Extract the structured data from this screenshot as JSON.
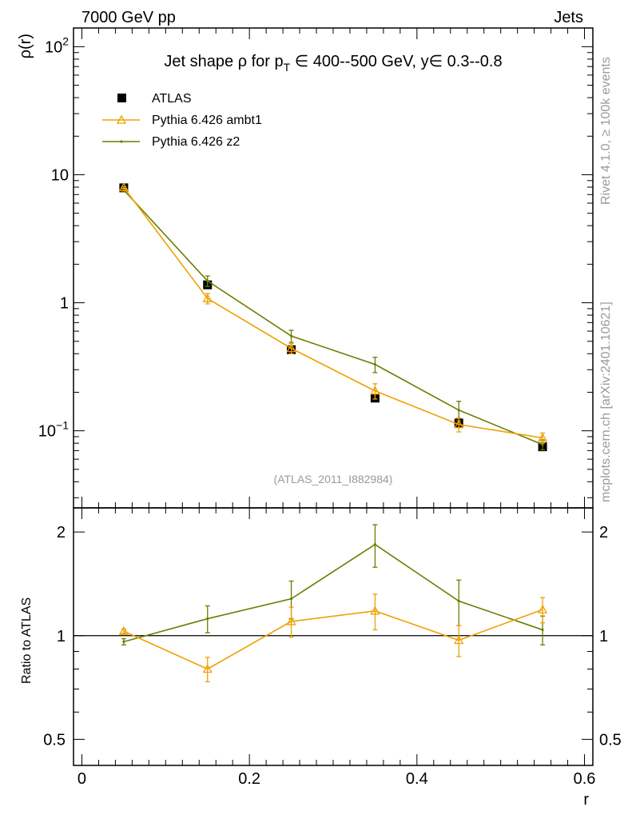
{
  "header": {
    "left": "7000 GeV pp",
    "right": "Jets"
  },
  "side_labels": {
    "rivet": "Rivet 4.1.0, ≥ 100k events",
    "mcplots": "mcplots.cern.ch [arXiv:2401.10621]"
  },
  "colors": {
    "atlas": "#000000",
    "ambt1": "#f0a000",
    "z2": "#6e7d00"
  },
  "chart_data": [
    {
      "type": "line",
      "title": "Jet shape ρ for p_T ∈ 400--500 GeV, y∈ 0.3--0.8",
      "title_parts": {
        "prefix": "Jet shape ρ for p",
        "sub": "T",
        "suffix": " ∈ 400--500 GeV, y∈ 0.3--0.8"
      },
      "ylabel": "ρ(r)",
      "yscale": "log",
      "ylim": [
        0.025,
        140
      ],
      "xlim": [
        -0.01,
        0.61
      ],
      "yticks": [
        {
          "value": 0.1,
          "base": "10",
          "exp": "−1"
        },
        {
          "value": 1,
          "label": "1"
        },
        {
          "value": 10,
          "label": "10"
        },
        {
          "value": 100,
          "base": "10",
          "exp": "2"
        }
      ],
      "annotation": "(ATLAS_2011_I882984)",
      "legend_position": "top-left",
      "series": [
        {
          "name": "ATLAS",
          "key": "atlas",
          "style": "markers",
          "x": [
            0.05,
            0.15,
            0.25,
            0.35,
            0.45,
            0.55
          ],
          "y": [
            7.9,
            1.38,
            0.43,
            0.18,
            0.115,
            0.075
          ],
          "err": [
            0.15,
            0.05,
            0.015,
            0.008,
            0.006,
            0.004
          ]
        },
        {
          "name": "Pythia 6.426 ambt1",
          "key": "ambt1",
          "style": "triangle-line",
          "x": [
            0.05,
            0.15,
            0.25,
            0.35,
            0.45,
            0.55
          ],
          "y": [
            7.95,
            1.08,
            0.44,
            0.205,
            0.112,
            0.088
          ],
          "err": [
            0.12,
            0.1,
            0.04,
            0.028,
            0.014,
            0.008
          ]
        },
        {
          "name": "Pythia 6.426 z2",
          "key": "z2",
          "style": "dot-line",
          "x": [
            0.05,
            0.15,
            0.25,
            0.35,
            0.45,
            0.55
          ],
          "y": [
            7.6,
            1.48,
            0.55,
            0.33,
            0.145,
            0.078
          ],
          "err": [
            0.15,
            0.14,
            0.06,
            0.045,
            0.025,
            0.007
          ]
        }
      ]
    },
    {
      "type": "line",
      "ylabel": "Ratio to ATLAS",
      "xlabel": "r",
      "yscale": "log",
      "ylim": [
        0.42,
        2.35
      ],
      "xlim": [
        -0.01,
        0.61
      ],
      "yticks": [
        0.5,
        1,
        2
      ],
      "xticks": [
        0,
        0.2,
        0.4,
        0.6
      ],
      "reference_line": 1,
      "series": [
        {
          "name": "Pythia 6.426 ambt1",
          "key": "ambt1",
          "style": "triangle-line",
          "x": [
            0.05,
            0.15,
            0.25,
            0.35,
            0.45,
            0.55
          ],
          "y": [
            1.03,
            0.8,
            1.1,
            1.18,
            0.97,
            1.19
          ],
          "err": [
            0.015,
            0.065,
            0.11,
            0.14,
            0.1,
            0.1
          ]
        },
        {
          "name": "Pythia 6.426 z2",
          "key": "z2",
          "style": "dot-line",
          "x": [
            0.05,
            0.15,
            0.25,
            0.35,
            0.45,
            0.55
          ],
          "y": [
            0.96,
            1.12,
            1.28,
            1.84,
            1.26,
            1.04
          ],
          "err": [
            0.02,
            0.1,
            0.16,
            0.26,
            0.19,
            0.1
          ]
        }
      ]
    }
  ]
}
